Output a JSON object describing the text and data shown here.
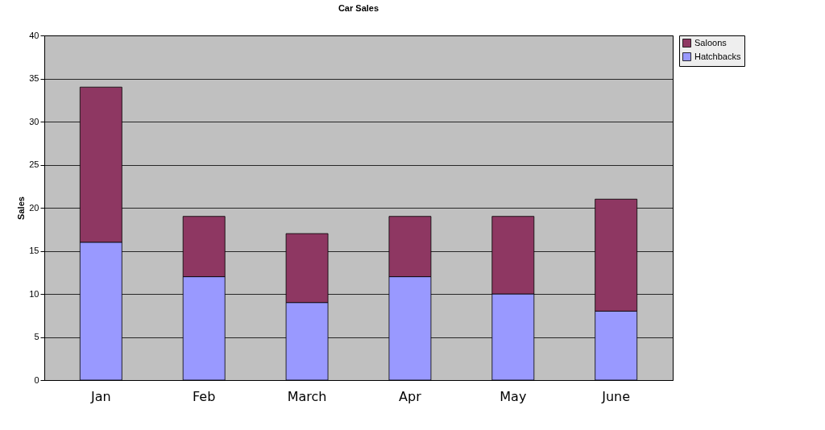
{
  "chart_data": {
    "type": "bar",
    "title": "Car Sales",
    "ylabel": "Sales",
    "categories": [
      "Jan",
      "Feb",
      "March",
      "Apr",
      "May",
      "June"
    ],
    "stacked": true,
    "series": [
      {
        "name": "Hatchbacks",
        "color": "#9999ff",
        "values": [
          16,
          12,
          9,
          12,
          10,
          8
        ]
      },
      {
        "name": "Saloons",
        "color": "#8e3762",
        "values": [
          18,
          7,
          8,
          7,
          9,
          13
        ]
      }
    ],
    "ylim": [
      0,
      40
    ],
    "yticks": [
      0,
      5,
      10,
      15,
      20,
      25,
      30,
      35,
      40
    ],
    "grid": "y",
    "legend": "right"
  }
}
